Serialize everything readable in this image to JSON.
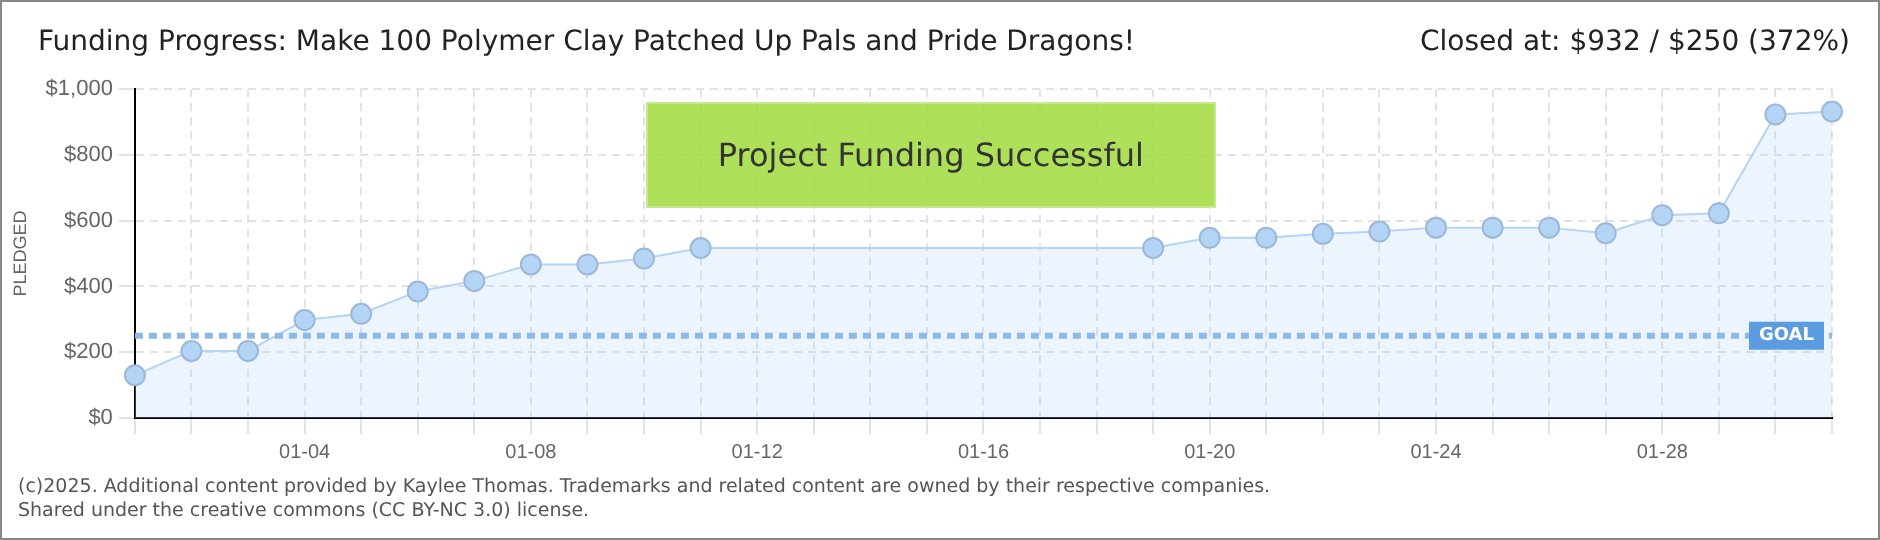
{
  "chart_data": {
    "type": "area",
    "title": "Funding Progress: Make 100 Polymer Clay Patched Up Pals and Pride Dragons!",
    "subtitle": "Closed at: $932 / $250 (372%)",
    "ylabel": "PLEDGED",
    "categories": [
      null,
      null,
      null,
      "01-04",
      null,
      null,
      null,
      "01-08",
      null,
      null,
      null,
      "01-12",
      null,
      null,
      null,
      "01-16",
      null,
      null,
      null,
      "01-20",
      null,
      null,
      null,
      "01-24",
      null,
      null,
      null,
      "01-28",
      null,
      null,
      null
    ],
    "series": [
      {
        "color": "#b4d4f6",
        "values": [
          130,
          204,
          204,
          298,
          317,
          385,
          417,
          467,
          467,
          485,
          517,
          null,
          null,
          null,
          null,
          null,
          null,
          null,
          517,
          548,
          548,
          560,
          567,
          579,
          579,
          579,
          562,
          617,
          623,
          923,
          932
        ]
      }
    ],
    "ylim": [
      0,
      1000
    ],
    "yticks": [
      {
        "value": 0,
        "label": "$0"
      },
      {
        "value": 200,
        "label": "$200"
      },
      {
        "value": 400,
        "label": "$400"
      },
      {
        "value": 600,
        "label": "$600"
      },
      {
        "value": 800,
        "label": "$800"
      },
      {
        "value": 1000,
        "label": "$1,000"
      }
    ],
    "grid": true,
    "marker": "circle",
    "ref_lines": [
      {
        "axis": "y",
        "value": 250,
        "label": "GOAL",
        "color": "#8db8e8",
        "line_style": "dashed"
      }
    ],
    "annotations": [
      "Project Funding Successful",
      "(c)2025. Additional content provided by Kaylee Thomas. Trademarks and related content are owned by their respective companies.",
      "Shared under the creative commons (CC BY-NC 3.0) license."
    ]
  }
}
